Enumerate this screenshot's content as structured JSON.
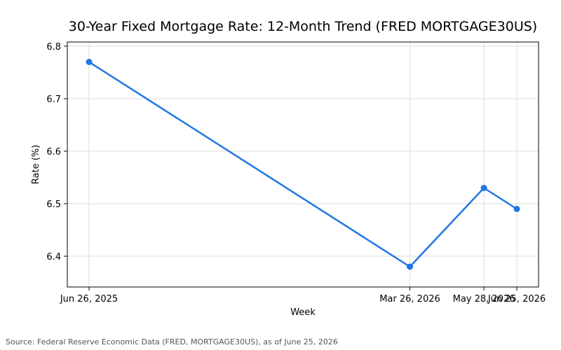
{
  "chart_data": {
    "type": "line",
    "title": "30-Year Fixed Mortgage Rate: 12-Month Trend (FRED MORTGAGE30US)",
    "xlabel": "Week",
    "ylabel": "Rate (%)",
    "x": [
      "Jun 26, 2025",
      "Mar 26, 2026",
      "May 28, 2026",
      "Jun 25, 2026"
    ],
    "x_dates": [
      "2025-06-26",
      "2026-03-26",
      "2026-05-28",
      "2026-06-25"
    ],
    "series": [
      {
        "values": [
          6.77,
          6.38,
          6.53,
          6.49
        ],
        "color": "#1f77e4"
      }
    ],
    "yticks": [
      6.4,
      6.5,
      6.6,
      6.7,
      6.8
    ],
    "ylim": [
      6.35,
      6.81
    ],
    "grid": true,
    "legend": "none"
  },
  "source_note": "Source: Federal Reserve Economic Data (FRED, MORTGAGE30US), as of June 25, 2026"
}
